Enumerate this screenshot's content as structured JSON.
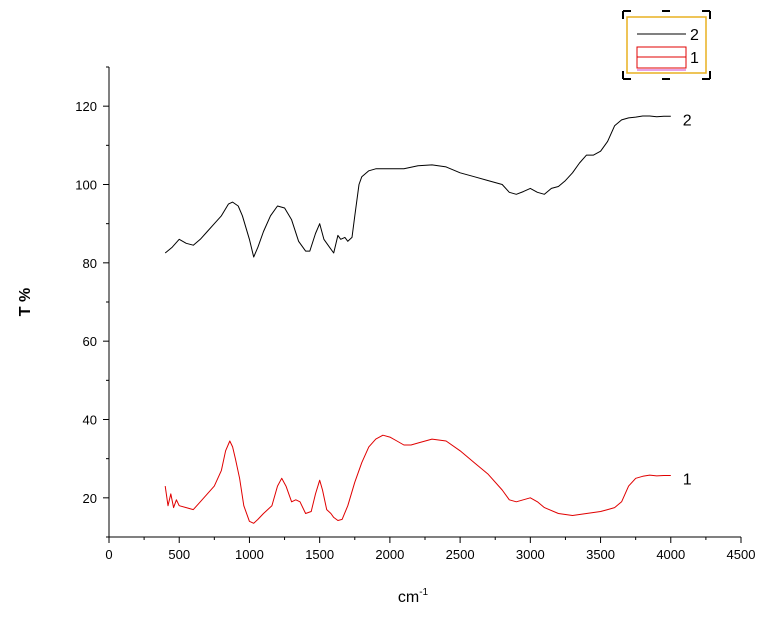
{
  "chart_data": {
    "type": "line",
    "title": "",
    "xlabel": "cm",
    "xlabel_superscript": "-1",
    "ylabel": "T %",
    "xlim": [
      0,
      4500
    ],
    "ylim": [
      10,
      130
    ],
    "x_ticks": [
      0,
      500,
      1000,
      1500,
      2000,
      2500,
      3000,
      3500,
      4000,
      4500
    ],
    "y_ticks": [
      20,
      40,
      60,
      80,
      100,
      120
    ],
    "grid": false,
    "legend": {
      "placement": "top-right",
      "entries": [
        {
          "label": "2",
          "color": "#000000",
          "style": "line"
        },
        {
          "label": "1",
          "color": "#e00000",
          "style": "box"
        }
      ]
    },
    "series": [
      {
        "name": "2",
        "color": "#000000",
        "end_label": "2",
        "x": [
          400,
          450,
          500,
          550,
          600,
          650,
          700,
          750,
          800,
          850,
          880,
          920,
          950,
          1000,
          1030,
          1060,
          1100,
          1150,
          1200,
          1250,
          1300,
          1350,
          1400,
          1430,
          1470,
          1500,
          1530,
          1570,
          1600,
          1630,
          1650,
          1680,
          1700,
          1730,
          1750,
          1780,
          1800,
          1850,
          1900,
          2000,
          2100,
          2200,
          2300,
          2400,
          2500,
          2600,
          2700,
          2800,
          2850,
          2900,
          2950,
          3000,
          3050,
          3100,
          3150,
          3200,
          3250,
          3300,
          3350,
          3400,
          3450,
          3500,
          3550,
          3600,
          3650,
          3700,
          3750,
          3800,
          3850,
          3900,
          3950,
          4000
        ],
        "values": [
          82.5,
          84,
          86,
          85,
          84.5,
          86,
          88,
          90,
          92,
          95,
          95.5,
          94.5,
          92,
          86,
          81.5,
          84,
          88,
          92,
          94.5,
          94,
          91,
          85.5,
          83,
          83,
          87.5,
          90,
          86,
          84,
          82.5,
          87,
          86,
          86.5,
          85.5,
          86.5,
          92,
          100,
          102,
          103.5,
          104,
          104,
          104,
          104.8,
          105,
          104.5,
          103,
          102,
          101,
          100,
          98,
          97.5,
          98.2,
          99,
          98,
          97.5,
          99,
          99.5,
          101,
          103,
          105.5,
          107.5,
          107.5,
          108.5,
          111,
          115,
          116.5,
          117,
          117.2,
          117.5,
          117.5,
          117.3,
          117.4,
          117.4
        ]
      },
      {
        "name": "1",
        "color": "#e00000",
        "end_label": "1",
        "x": [
          400,
          420,
          440,
          460,
          480,
          500,
          550,
          600,
          650,
          700,
          750,
          800,
          830,
          860,
          880,
          900,
          930,
          960,
          1000,
          1030,
          1060,
          1100,
          1130,
          1160,
          1200,
          1230,
          1260,
          1300,
          1330,
          1360,
          1400,
          1440,
          1470,
          1500,
          1520,
          1550,
          1580,
          1600,
          1630,
          1660,
          1700,
          1750,
          1800,
          1850,
          1900,
          1950,
          2000,
          2050,
          2100,
          2150,
          2200,
          2300,
          2400,
          2500,
          2600,
          2700,
          2800,
          2850,
          2900,
          2950,
          3000,
          3050,
          3100,
          3200,
          3300,
          3400,
          3500,
          3550,
          3600,
          3650,
          3700,
          3750,
          3800,
          3850,
          3900,
          3950,
          4000
        ],
        "values": [
          23,
          18,
          21,
          17.5,
          19.5,
          18,
          17.5,
          17,
          19,
          21,
          23,
          27,
          32,
          34.5,
          33,
          30,
          25,
          18,
          14,
          13.5,
          14.5,
          16,
          17,
          18,
          23,
          25,
          23,
          19,
          19.5,
          19,
          16,
          16.5,
          21,
          24.5,
          22,
          17,
          16,
          15,
          14.2,
          14.5,
          18,
          24,
          29,
          33,
          35,
          36,
          35.5,
          34.5,
          33.5,
          33.5,
          34,
          35,
          34.5,
          32,
          29,
          26,
          22,
          19.5,
          19,
          19.5,
          20,
          19,
          17.5,
          16,
          15.5,
          16,
          16.5,
          17,
          17.5,
          19,
          23,
          25,
          25.5,
          25.8,
          25.6,
          25.7,
          25.7
        ]
      }
    ]
  }
}
